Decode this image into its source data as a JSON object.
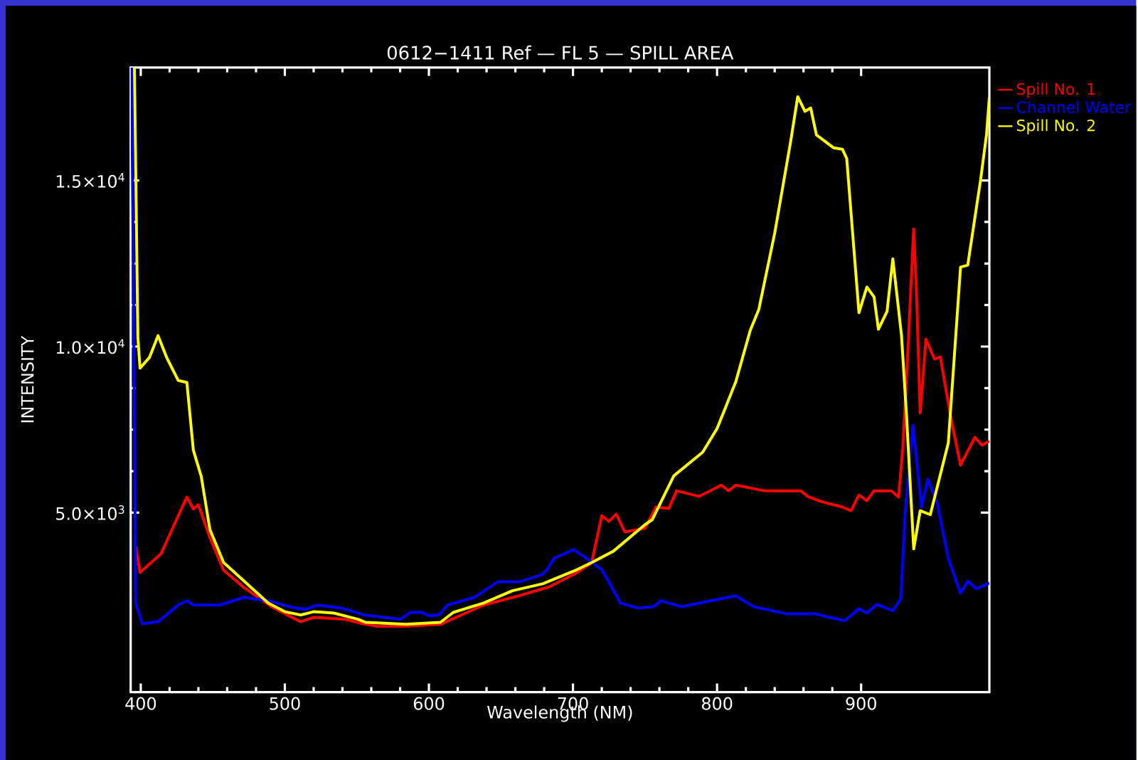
{
  "chart_data": {
    "type": "line",
    "title": "0612−1411 Ref — FL 5 — SPILL AREA",
    "xlabel": "Wavelength (NM)",
    "ylabel": "INTENSITY",
    "xlim": [
      393,
      989
    ],
    "ylim": [
      -400,
      18400
    ],
    "xticks": [
      400,
      500,
      600,
      700,
      800,
      900
    ],
    "yticks": [
      {
        "value": 5000,
        "label": "5.0×10$^{3}$"
      },
      {
        "value": 10000,
        "label": "1.0×10$^{4}$"
      },
      {
        "value": 15000,
        "label": "1.5×10$^{4}$"
      }
    ],
    "legend": "top right",
    "series": [
      {
        "name": "Spill No. 1",
        "color": "#ff0000",
        "x": [
          396.5,
          399.5,
          414,
          432,
          436.5,
          440,
          448,
          457.5,
          471,
          491.6,
          511,
          520,
          542,
          553.7,
          564,
          584,
          608,
          638,
          662.6,
          683.7,
          703,
          713,
          720,
          725,
          730,
          736,
          750,
          757.6,
          766.5,
          772,
          787.7,
          803,
          808,
          813,
          833,
          858,
          863,
          872,
          887,
          893,
          898.5,
          904,
          909,
          921,
          926,
          929,
          933,
          936.5,
          938.5,
          941,
          945,
          951,
          955,
          962,
          969,
          979,
          984,
          989
        ],
        "values": [
          3990,
          3200,
          3760,
          5470,
          5110,
          5240,
          4250,
          3270,
          2770,
          2150,
          1720,
          1850,
          1790,
          1660,
          1580,
          1580,
          1640,
          2220,
          2500,
          2770,
          3200,
          3500,
          4910,
          4740,
          4960,
          4420,
          4530,
          5170,
          5130,
          5660,
          5490,
          5830,
          5660,
          5830,
          5660,
          5660,
          5490,
          5340,
          5170,
          5060,
          5530,
          5360,
          5660,
          5660,
          5470,
          6970,
          10350,
          13540,
          11550,
          8000,
          10220,
          9620,
          9690,
          7930,
          6430,
          7270,
          7030,
          7160
        ]
      },
      {
        "name": "Channel Water",
        "color": "#0000ff",
        "x": [
          393.6,
          395,
          396.5,
          401,
          412,
          426,
          432,
          436.5,
          449,
          455,
          471.4,
          488.7,
          505,
          514,
          522.7,
          539,
          555.7,
          580,
          587,
          595,
          600,
          607,
          613,
          631.5,
          647.8,
          662.6,
          678.8,
          682,
          687,
          700.5,
          710,
          720,
          733,
          745,
          756,
          761,
          775.4,
          800.5,
          813,
          825.5,
          848,
          868,
          878,
          888.7,
          898.5,
          904,
          911,
          922,
          927.6,
          930.5,
          936,
          942,
          946.3,
          952.7,
          960.6,
          969,
          974,
          980,
          989
        ],
        "values": [
          18400,
          11380,
          2280,
          1660,
          1720,
          2220,
          2350,
          2220,
          2220,
          2220,
          2450,
          2350,
          2150,
          2090,
          2220,
          2130,
          1920,
          1790,
          2000,
          2000,
          1900,
          1920,
          2220,
          2450,
          2920,
          2920,
          3140,
          3290,
          3630,
          3890,
          3610,
          3290,
          2280,
          2130,
          2170,
          2350,
          2170,
          2390,
          2500,
          2170,
          1960,
          1960,
          1850,
          1750,
          2110,
          1980,
          2240,
          2050,
          2410,
          4940,
          7630,
          5170,
          6010,
          5300,
          3610,
          2580,
          2940,
          2710,
          2880
        ]
      },
      {
        "name": "Spill No. 2",
        "color": "#ffff00",
        "x": [
          395.6,
          398,
          399.5,
          406,
          412,
          418,
          426,
          432,
          436.5,
          442,
          448,
          457.5,
          471,
          488.5,
          500,
          511,
          520,
          534,
          551,
          556,
          584,
          608,
          617,
          638,
          658,
          679,
          703,
          713,
          728,
          750,
          755,
          770,
          790,
          800,
          813,
          823,
          829,
          840,
          851,
          856,
          861,
          865,
          869,
          881,
          887,
          890,
          898.5,
          904,
          909,
          912,
          918,
          922,
          928,
          931.5,
          936.5,
          941,
          948,
          960.5,
          969,
          974,
          983,
          987,
          989
        ],
        "values": [
          18400,
          10270,
          9350,
          9670,
          10330,
          9670,
          8980,
          8920,
          6880,
          6090,
          4490,
          3500,
          2970,
          2280,
          2020,
          1920,
          2020,
          1980,
          1790,
          1700,
          1640,
          1700,
          2000,
          2280,
          2650,
          2860,
          3290,
          3500,
          3840,
          4640,
          4790,
          6110,
          6820,
          7530,
          8940,
          10480,
          11120,
          13410,
          16150,
          17520,
          17080,
          17180,
          16370,
          15980,
          15940,
          15660,
          11020,
          11790,
          11490,
          10520,
          11060,
          12640,
          10350,
          7930,
          3910,
          5060,
          4940,
          7100,
          12390,
          12450,
          15040,
          16370,
          17500
        ]
      }
    ]
  }
}
